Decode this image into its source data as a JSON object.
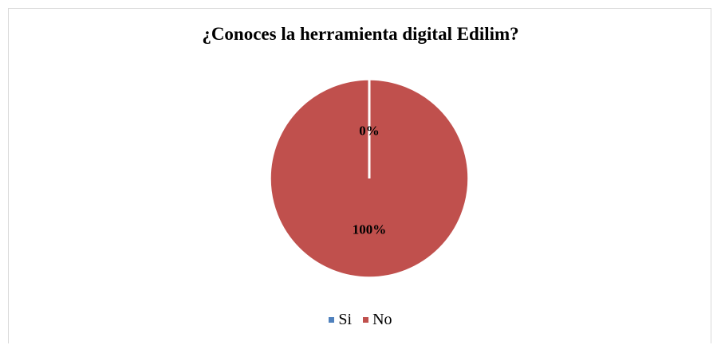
{
  "chart_data": {
    "type": "pie",
    "title": "¿Conoces la herramienta digital Edilim?",
    "categories": [
      "Si",
      "No"
    ],
    "values": [
      0,
      100
    ],
    "data_labels": [
      "0%",
      "100%"
    ],
    "colors": [
      "#4f81bd",
      "#c0504d"
    ],
    "legend": "bottom",
    "slice_border_color": "#ffffff"
  }
}
